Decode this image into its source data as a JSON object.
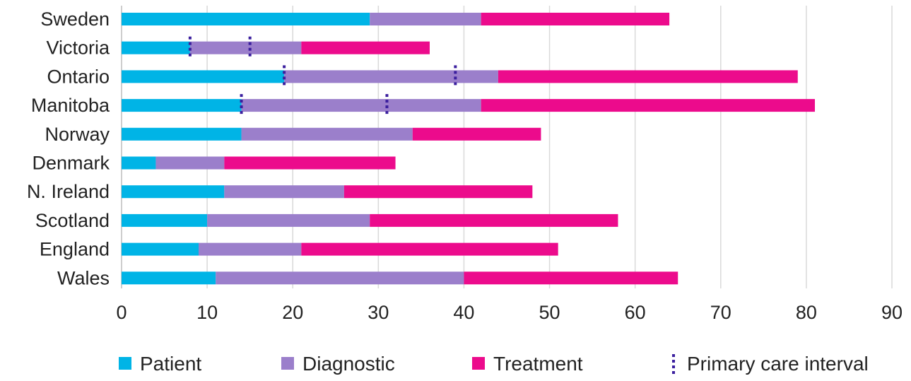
{
  "chart_data": {
    "type": "bar",
    "orientation": "horizontal",
    "stacked": true,
    "categories": [
      "Sweden",
      "Victoria",
      "Ontario",
      "Manitoba",
      "Norway",
      "Denmark",
      "N. Ireland",
      "Scotland",
      "England",
      "Wales"
    ],
    "series": [
      {
        "name": "Patient",
        "color": "#00b4e6",
        "values": [
          29,
          8,
          19,
          14,
          14,
          4,
          12,
          10,
          9,
          11
        ]
      },
      {
        "name": "Diagnostic",
        "color": "#9b7fcb",
        "values": [
          13,
          13,
          25,
          28,
          20,
          8,
          14,
          19,
          12,
          29
        ]
      },
      {
        "name": "Treatment",
        "color": "#ec0b8c",
        "values": [
          22,
          15,
          35,
          39,
          15,
          20,
          22,
          29,
          30,
          25
        ]
      }
    ],
    "primary_care_interval": {
      "name": "Primary care interval",
      "color": "#3b1f9e",
      "markers": [
        {
          "category": "Victoria",
          "start": 8,
          "end": 15
        },
        {
          "category": "Ontario",
          "start": 19,
          "end": 39
        },
        {
          "category": "Manitoba",
          "start": 14,
          "end": 31
        }
      ]
    },
    "xlim": [
      0,
      90
    ],
    "xticks": [
      0,
      10,
      20,
      30,
      40,
      50,
      60,
      70,
      80,
      90
    ],
    "grid": true,
    "legend_position": "bottom",
    "title": "",
    "xlabel": "",
    "ylabel": ""
  }
}
